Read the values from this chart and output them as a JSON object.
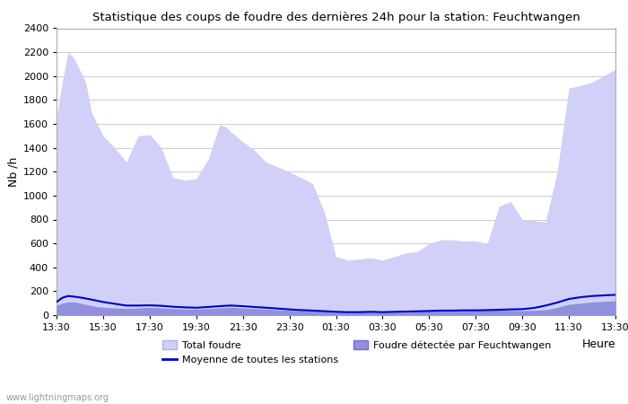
{
  "title": "Statistique des coups de foudre des dernières 24h pour la station: Feuchtwangen",
  "ylabel": "Nb /h",
  "watermark": "www.lightningmaps.org",
  "xlim": [
    0,
    24
  ],
  "ylim": [
    0,
    2400
  ],
  "yticks": [
    0,
    200,
    400,
    600,
    800,
    1000,
    1200,
    1400,
    1600,
    1800,
    2000,
    2200,
    2400
  ],
  "xtick_labels": [
    "13:30",
    "15:30",
    "17:30",
    "19:30",
    "21:30",
    "23:30",
    "01:30",
    "03:30",
    "05:30",
    "07:30",
    "09:30",
    "11:30",
    "13:30"
  ],
  "xtick_positions": [
    0,
    2,
    4,
    6,
    8,
    10,
    12,
    14,
    16,
    18,
    20,
    22,
    24
  ],
  "total_foudre_color": "#d0d0f8",
  "total_foudre_edge": "#b0b0e0",
  "detected_color": "#9090dd",
  "detected_edge": "#7070cc",
  "mean_line_color": "#0000cc",
  "background_color": "#ffffff",
  "grid_color": "#cccccc",
  "legend_labels": [
    "Total foudre",
    "Moyenne de toutes les stations",
    "Foudre détectée par Feuchtwangen"
  ],
  "total_foudre_x": [
    0.0,
    0.25,
    0.5,
    0.75,
    1.0,
    1.25,
    1.5,
    1.75,
    2.0,
    2.5,
    3.0,
    3.5,
    4.0,
    4.5,
    5.0,
    5.5,
    6.0,
    6.5,
    7.0,
    7.25,
    7.5,
    8.0,
    8.5,
    9.0,
    9.5,
    10.0,
    10.5,
    11.0,
    11.5,
    12.0,
    12.5,
    13.0,
    13.5,
    14.0,
    14.5,
    15.0,
    15.5,
    16.0,
    16.5,
    17.0,
    17.5,
    18.0,
    18.5,
    19.0,
    19.5,
    20.0,
    20.5,
    21.0,
    21.5,
    22.0,
    22.5,
    23.0,
    23.5,
    24.0
  ],
  "total_foudre_y": [
    1650,
    1950,
    2200,
    2150,
    2050,
    1950,
    1700,
    1600,
    1500,
    1400,
    1280,
    1500,
    1510,
    1400,
    1150,
    1130,
    1140,
    1300,
    1590,
    1580,
    1530,
    1450,
    1380,
    1280,
    1240,
    1200,
    1150,
    1100,
    860,
    490,
    460,
    470,
    480,
    460,
    490,
    520,
    530,
    600,
    630,
    630,
    620,
    620,
    600,
    910,
    950,
    800,
    790,
    780,
    1200,
    1900,
    1920,
    1950,
    2000,
    2060
  ],
  "detected_x": [
    0.0,
    0.25,
    0.5,
    0.75,
    1.0,
    1.25,
    1.5,
    1.75,
    2.0,
    2.5,
    3.0,
    3.5,
    4.0,
    4.5,
    5.0,
    5.5,
    6.0,
    6.5,
    7.0,
    7.25,
    7.5,
    8.0,
    8.5,
    9.0,
    9.5,
    10.0,
    10.5,
    11.0,
    11.5,
    12.0,
    12.5,
    13.0,
    13.5,
    14.0,
    14.5,
    15.0,
    15.5,
    16.0,
    16.5,
    17.0,
    17.5,
    18.0,
    18.5,
    19.0,
    19.5,
    20.0,
    20.5,
    21.0,
    21.5,
    22.0,
    22.5,
    23.0,
    23.5,
    24.0
  ],
  "detected_y": [
    80,
    100,
    110,
    110,
    100,
    90,
    80,
    70,
    65,
    60,
    55,
    60,
    65,
    60,
    55,
    50,
    50,
    55,
    60,
    62,
    65,
    60,
    55,
    50,
    45,
    40,
    38,
    35,
    32,
    28,
    25,
    25,
    28,
    25,
    28,
    30,
    32,
    35,
    38,
    38,
    40,
    40,
    42,
    42,
    40,
    38,
    40,
    45,
    65,
    90,
    100,
    110,
    115,
    120
  ],
  "mean_x": [
    0.0,
    0.25,
    0.5,
    0.75,
    1.0,
    1.25,
    1.5,
    1.75,
    2.0,
    2.5,
    3.0,
    3.5,
    4.0,
    4.5,
    5.0,
    5.5,
    6.0,
    6.5,
    7.0,
    7.25,
    7.5,
    8.0,
    8.5,
    9.0,
    9.5,
    10.0,
    10.5,
    11.0,
    11.5,
    12.0,
    12.5,
    13.0,
    13.5,
    14.0,
    14.5,
    15.0,
    15.5,
    16.0,
    16.5,
    17.0,
    17.5,
    18.0,
    18.5,
    19.0,
    19.5,
    20.0,
    20.5,
    21.0,
    21.5,
    22.0,
    22.5,
    23.0,
    23.5,
    24.0
  ],
  "mean_y": [
    110,
    145,
    160,
    155,
    148,
    140,
    130,
    120,
    110,
    95,
    80,
    80,
    82,
    78,
    70,
    65,
    62,
    68,
    75,
    78,
    80,
    75,
    68,
    62,
    55,
    48,
    42,
    38,
    33,
    28,
    25,
    25,
    28,
    25,
    28,
    30,
    32,
    35,
    38,
    38,
    40,
    40,
    42,
    45,
    48,
    50,
    60,
    80,
    105,
    135,
    150,
    160,
    165,
    170
  ]
}
